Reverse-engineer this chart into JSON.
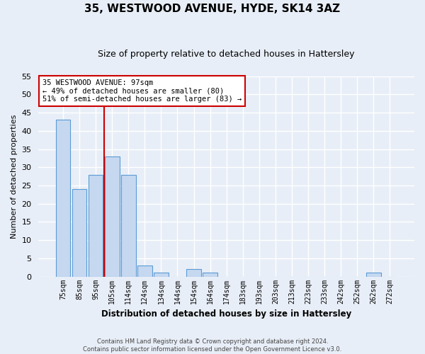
{
  "title": "35, WESTWOOD AVENUE, HYDE, SK14 3AZ",
  "subtitle": "Size of property relative to detached houses in Hattersley",
  "xlabel": "Distribution of detached houses by size in Hattersley",
  "ylabel": "Number of detached properties",
  "categories": [
    "75sqm",
    "85sqm",
    "95sqm",
    "105sqm",
    "114sqm",
    "124sqm",
    "134sqm",
    "144sqm",
    "154sqm",
    "164sqm",
    "174sqm",
    "183sqm",
    "193sqm",
    "203sqm",
    "213sqm",
    "223sqm",
    "233sqm",
    "242sqm",
    "252sqm",
    "262sqm",
    "272sqm"
  ],
  "values": [
    43,
    24,
    28,
    33,
    28,
    3,
    1,
    0,
    2,
    1,
    0,
    0,
    0,
    0,
    0,
    0,
    0,
    0,
    0,
    1,
    0
  ],
  "bar_color": "#c5d8f0",
  "bar_edge_color": "#5b9bd5",
  "ylim": [
    0,
    55
  ],
  "yticks": [
    0,
    5,
    10,
    15,
    20,
    25,
    30,
    35,
    40,
    45,
    50,
    55
  ],
  "redline_x": 2.5,
  "annotation_title": "35 WESTWOOD AVENUE: 97sqm",
  "annotation_line1": "← 49% of detached houses are smaller (80)",
  "annotation_line2": "51% of semi-detached houses are larger (83) →",
  "annotation_box_color": "#ffffff",
  "annotation_box_edge": "#cc0000",
  "redline_color": "#cc0000",
  "footer_line1": "Contains HM Land Registry data © Crown copyright and database right 2024.",
  "footer_line2": "Contains public sector information licensed under the Open Government Licence v3.0.",
  "background_color": "#e8eef7",
  "plot_bg_color": "#e8eef7",
  "grid_color": "#ffffff",
  "title_fontsize": 11,
  "subtitle_fontsize": 9
}
